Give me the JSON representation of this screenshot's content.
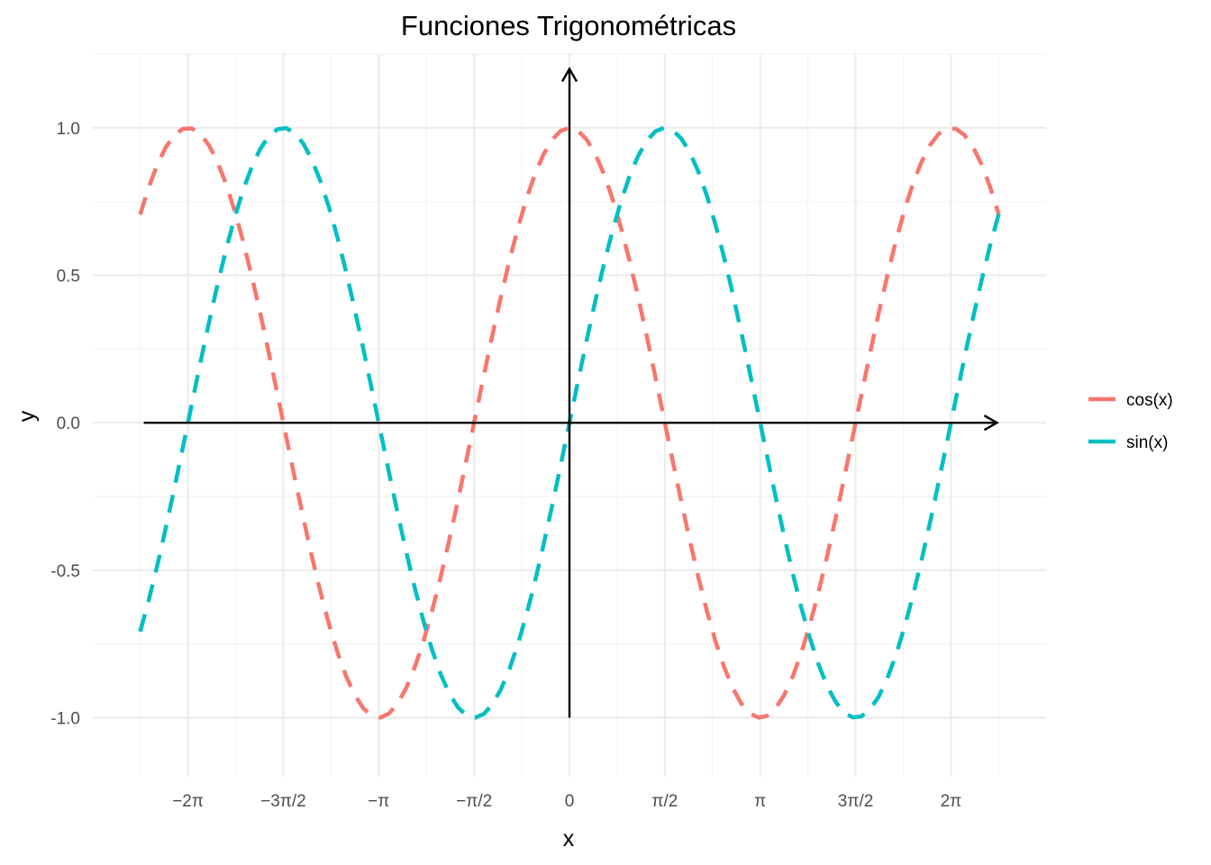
{
  "chart_data": {
    "type": "line",
    "title": "Funciones Trigonométricas",
    "xlabel": "x",
    "ylabel": "y",
    "xlim": [
      -7.85,
      7.85
    ],
    "ylim": [
      -1.2,
      1.25
    ],
    "x_ticks": [
      {
        "value": -6.2832,
        "label": "−2π"
      },
      {
        "value": -4.7124,
        "label": "−3π/2"
      },
      {
        "value": -3.1416,
        "label": "−π"
      },
      {
        "value": -1.5708,
        "label": "−π/2"
      },
      {
        "value": 0,
        "label": "0"
      },
      {
        "value": 1.5708,
        "label": "π/2"
      },
      {
        "value": 3.1416,
        "label": "π"
      },
      {
        "value": 4.7124,
        "label": "3π/2"
      },
      {
        "value": 6.2832,
        "label": "2π"
      }
    ],
    "y_ticks": [
      {
        "value": -1.0,
        "label": "-1.0"
      },
      {
        "value": -0.5,
        "label": "-0.5"
      },
      {
        "value": 0.0,
        "label": "0.0"
      },
      {
        "value": 0.5,
        "label": "0.5"
      },
      {
        "value": 1.0,
        "label": "1.0"
      }
    ],
    "x_range": [
      -7.07,
      7.07
    ],
    "series": [
      {
        "name": "cos(x)",
        "function": "cos",
        "color": "#F8766D",
        "line_style": "dashed"
      },
      {
        "name": "sin(x)",
        "function": "sin",
        "color": "#00BFC4",
        "line_style": "dashed"
      }
    ],
    "grid": true,
    "reference_axes": {
      "x_arrow": true,
      "y_arrow": true,
      "color": "#000000"
    },
    "legend_position": "right"
  }
}
